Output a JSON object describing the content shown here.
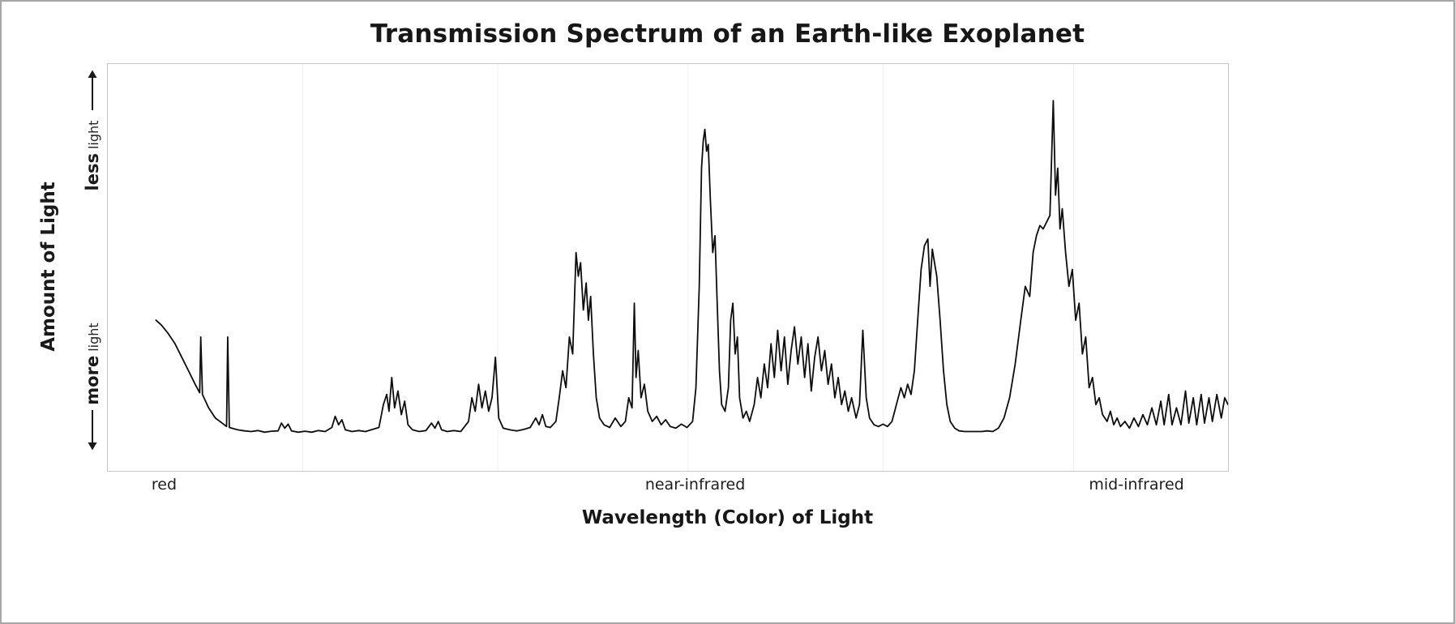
{
  "chart_data": {
    "type": "line",
    "title": "Transmission Spectrum of an Earth-like Exoplanet",
    "xlabel": "Wavelength (Color) of Light",
    "ylabel": "Amount of Light",
    "y_annotations": {
      "top": {
        "bold": "less",
        "normal": "light",
        "arrow": "up"
      },
      "bottom": {
        "bold": "more",
        "normal": "light",
        "arrow": "down"
      }
    },
    "x_tick_labels": [
      {
        "label": "red",
        "pos": 5.1
      },
      {
        "label": "near-infrared",
        "pos": 52.5
      },
      {
        "label": "mid-infrared",
        "pos": 91.9
      }
    ],
    "xlim": [
      0,
      100
    ],
    "ylim": [
      0,
      100
    ],
    "y_meaning": "absorption depth: 0 = baseline (more light reaches us), 100 = tallest peak (less light)",
    "grid": {
      "vertical_positions": [
        17.4,
        34.8,
        51.8,
        69.2,
        86.2
      ],
      "color": "#ededed"
    },
    "line_color": "#0d0d0d",
    "series": [
      {
        "name": "Earth-like exoplanet transmission spectrum",
        "points": [
          [
            4.3,
            35
          ],
          [
            4.8,
            33.5
          ],
          [
            5.4,
            31
          ],
          [
            6.0,
            28
          ],
          [
            6.6,
            24
          ],
          [
            7.2,
            20
          ],
          [
            7.8,
            16
          ],
          [
            8.2,
            13.5
          ],
          [
            8.3,
            30
          ],
          [
            8.45,
            13
          ],
          [
            9.0,
            9
          ],
          [
            9.6,
            6
          ],
          [
            10.2,
            4.5
          ],
          [
            10.6,
            3.5
          ],
          [
            10.7,
            30
          ],
          [
            10.85,
            3.2
          ],
          [
            11.3,
            2.8
          ],
          [
            11.6,
            2.5
          ],
          [
            12.2,
            2.2
          ],
          [
            12.8,
            2.0
          ],
          [
            13.4,
            2.3
          ],
          [
            14.0,
            1.8
          ],
          [
            14.6,
            2.1
          ],
          [
            15.2,
            2.2
          ],
          [
            15.5,
            4.5
          ],
          [
            15.8,
            3
          ],
          [
            16.1,
            4.2
          ],
          [
            16.4,
            2.2
          ],
          [
            17.0,
            1.8
          ],
          [
            17.6,
            2.1
          ],
          [
            18.2,
            1.8
          ],
          [
            18.8,
            2.3
          ],
          [
            19.4,
            2
          ],
          [
            20.0,
            3.2
          ],
          [
            20.3,
            6.5
          ],
          [
            20.6,
            4
          ],
          [
            20.9,
            5.5
          ],
          [
            21.2,
            2.5
          ],
          [
            21.8,
            2
          ],
          [
            22.4,
            2.3
          ],
          [
            23.0,
            2
          ],
          [
            23.6,
            2.6
          ],
          [
            24.2,
            3.2
          ],
          [
            24.6,
            10
          ],
          [
            24.9,
            13
          ],
          [
            25.1,
            8
          ],
          [
            25.35,
            18
          ],
          [
            25.6,
            9
          ],
          [
            25.9,
            14
          ],
          [
            26.2,
            7
          ],
          [
            26.5,
            11
          ],
          [
            26.8,
            4
          ],
          [
            27.2,
            2.5
          ],
          [
            27.8,
            2
          ],
          [
            28.4,
            2.3
          ],
          [
            28.9,
            4.5
          ],
          [
            29.2,
            3
          ],
          [
            29.5,
            5
          ],
          [
            29.8,
            2.5
          ],
          [
            30.3,
            2
          ],
          [
            30.9,
            2.3
          ],
          [
            31.5,
            2
          ],
          [
            32.2,
            5
          ],
          [
            32.5,
            12
          ],
          [
            32.8,
            8
          ],
          [
            33.1,
            16
          ],
          [
            33.4,
            9
          ],
          [
            33.7,
            14
          ],
          [
            34.0,
            8
          ],
          [
            34.3,
            12
          ],
          [
            34.6,
            24
          ],
          [
            34.9,
            6
          ],
          [
            35.3,
            3
          ],
          [
            35.9,
            2.5
          ],
          [
            36.5,
            2.2
          ],
          [
            37.1,
            2.6
          ],
          [
            37.7,
            3.2
          ],
          [
            38.2,
            6
          ],
          [
            38.5,
            4
          ],
          [
            38.8,
            7
          ],
          [
            39.1,
            3.5
          ],
          [
            39.5,
            3.2
          ],
          [
            40.0,
            5
          ],
          [
            40.3,
            12
          ],
          [
            40.6,
            20
          ],
          [
            40.9,
            15
          ],
          [
            41.2,
            30
          ],
          [
            41.5,
            25
          ],
          [
            41.8,
            55
          ],
          [
            42.0,
            48
          ],
          [
            42.2,
            52
          ],
          [
            42.45,
            38
          ],
          [
            42.7,
            46
          ],
          [
            42.9,
            35
          ],
          [
            43.1,
            42
          ],
          [
            43.35,
            25
          ],
          [
            43.6,
            12
          ],
          [
            43.9,
            6
          ],
          [
            44.3,
            4
          ],
          [
            44.8,
            3.2
          ],
          [
            45.3,
            6
          ],
          [
            45.8,
            3.5
          ],
          [
            46.2,
            5
          ],
          [
            46.5,
            12
          ],
          [
            46.8,
            9
          ],
          [
            47.0,
            40
          ],
          [
            47.15,
            18
          ],
          [
            47.35,
            26
          ],
          [
            47.6,
            12
          ],
          [
            47.9,
            16
          ],
          [
            48.2,
            8
          ],
          [
            48.6,
            5
          ],
          [
            49.0,
            6.5
          ],
          [
            49.4,
            4
          ],
          [
            49.8,
            5.5
          ],
          [
            50.2,
            3.5
          ],
          [
            50.7,
            3
          ],
          [
            51.2,
            4.2
          ],
          [
            51.7,
            3.2
          ],
          [
            52.2,
            5
          ],
          [
            52.5,
            15
          ],
          [
            52.8,
            45
          ],
          [
            53.0,
            80
          ],
          [
            53.15,
            88
          ],
          [
            53.3,
            91.5
          ],
          [
            53.45,
            85
          ],
          [
            53.6,
            87
          ],
          [
            53.8,
            70
          ],
          [
            54.0,
            55
          ],
          [
            54.2,
            60
          ],
          [
            54.4,
            40
          ],
          [
            54.6,
            20
          ],
          [
            54.8,
            10
          ],
          [
            55.1,
            8
          ],
          [
            55.4,
            15
          ],
          [
            55.6,
            35
          ],
          [
            55.8,
            40
          ],
          [
            56.0,
            25
          ],
          [
            56.2,
            30
          ],
          [
            56.4,
            12
          ],
          [
            56.7,
            6
          ],
          [
            57.0,
            8
          ],
          [
            57.3,
            5
          ],
          [
            57.7,
            10
          ],
          [
            58.0,
            18
          ],
          [
            58.3,
            12
          ],
          [
            58.6,
            22
          ],
          [
            58.9,
            15
          ],
          [
            59.2,
            28
          ],
          [
            59.5,
            18
          ],
          [
            59.8,
            32
          ],
          [
            60.1,
            20
          ],
          [
            60.4,
            30
          ],
          [
            60.7,
            16
          ],
          [
            61.0,
            26
          ],
          [
            61.3,
            33
          ],
          [
            61.6,
            22
          ],
          [
            61.9,
            30
          ],
          [
            62.2,
            18
          ],
          [
            62.5,
            28
          ],
          [
            62.8,
            14
          ],
          [
            63.1,
            24
          ],
          [
            63.4,
            30
          ],
          [
            63.7,
            20
          ],
          [
            64.0,
            26
          ],
          [
            64.3,
            16
          ],
          [
            64.6,
            22
          ],
          [
            64.9,
            12
          ],
          [
            65.2,
            18
          ],
          [
            65.5,
            10
          ],
          [
            65.8,
            14
          ],
          [
            66.1,
            8
          ],
          [
            66.4,
            12
          ],
          [
            66.8,
            6
          ],
          [
            67.1,
            10
          ],
          [
            67.4,
            32
          ],
          [
            67.7,
            12
          ],
          [
            68.0,
            6
          ],
          [
            68.4,
            4
          ],
          [
            68.8,
            3.5
          ],
          [
            69.2,
            4.2
          ],
          [
            69.6,
            3.5
          ],
          [
            70.0,
            5
          ],
          [
            70.4,
            10
          ],
          [
            70.8,
            15
          ],
          [
            71.1,
            12
          ],
          [
            71.4,
            16
          ],
          [
            71.7,
            13
          ],
          [
            72.0,
            20
          ],
          [
            72.3,
            35
          ],
          [
            72.6,
            50
          ],
          [
            72.9,
            57
          ],
          [
            73.2,
            59
          ],
          [
            73.4,
            45
          ],
          [
            73.6,
            56
          ],
          [
            73.8,
            52
          ],
          [
            74.0,
            48
          ],
          [
            74.3,
            35
          ],
          [
            74.6,
            20
          ],
          [
            74.9,
            10
          ],
          [
            75.2,
            5
          ],
          [
            75.6,
            3
          ],
          [
            76.0,
            2.2
          ],
          [
            76.5,
            2
          ],
          [
            77.0,
            2
          ],
          [
            77.5,
            2
          ],
          [
            78.0,
            2
          ],
          [
            78.5,
            2.2
          ],
          [
            79.0,
            2
          ],
          [
            79.5,
            3
          ],
          [
            80.0,
            6
          ],
          [
            80.5,
            12
          ],
          [
            81.0,
            22
          ],
          [
            81.5,
            35
          ],
          [
            81.9,
            45
          ],
          [
            82.3,
            42
          ],
          [
            82.6,
            55
          ],
          [
            82.9,
            60
          ],
          [
            83.2,
            63
          ],
          [
            83.5,
            62
          ],
          [
            83.8,
            64
          ],
          [
            84.1,
            66
          ],
          [
            84.4,
            100
          ],
          [
            84.6,
            72
          ],
          [
            84.8,
            80
          ],
          [
            85.0,
            62
          ],
          [
            85.2,
            68
          ],
          [
            85.5,
            55
          ],
          [
            85.8,
            45
          ],
          [
            86.1,
            50
          ],
          [
            86.4,
            35
          ],
          [
            86.7,
            40
          ],
          [
            87.0,
            25
          ],
          [
            87.3,
            30
          ],
          [
            87.6,
            15
          ],
          [
            87.9,
            18
          ],
          [
            88.2,
            10
          ],
          [
            88.5,
            12
          ],
          [
            88.8,
            7
          ],
          [
            89.2,
            5
          ],
          [
            89.5,
            8
          ],
          [
            89.8,
            4
          ],
          [
            90.1,
            6
          ],
          [
            90.4,
            3.5
          ],
          [
            90.8,
            5
          ],
          [
            91.2,
            3
          ],
          [
            91.6,
            6
          ],
          [
            92.0,
            3.5
          ],
          [
            92.4,
            7
          ],
          [
            92.8,
            4
          ],
          [
            93.2,
            9
          ],
          [
            93.6,
            4
          ],
          [
            94.0,
            11
          ],
          [
            94.3,
            4
          ],
          [
            94.7,
            13
          ],
          [
            95.0,
            4
          ],
          [
            95.4,
            9
          ],
          [
            95.8,
            4
          ],
          [
            96.2,
            14
          ],
          [
            96.5,
            4.5
          ],
          [
            96.9,
            12
          ],
          [
            97.2,
            4
          ],
          [
            97.6,
            13
          ],
          [
            97.9,
            4.5
          ],
          [
            98.3,
            12
          ],
          [
            98.6,
            5
          ],
          [
            99.0,
            13
          ],
          [
            99.4,
            6
          ],
          [
            99.7,
            12
          ],
          [
            100,
            10
          ]
        ]
      }
    ]
  }
}
